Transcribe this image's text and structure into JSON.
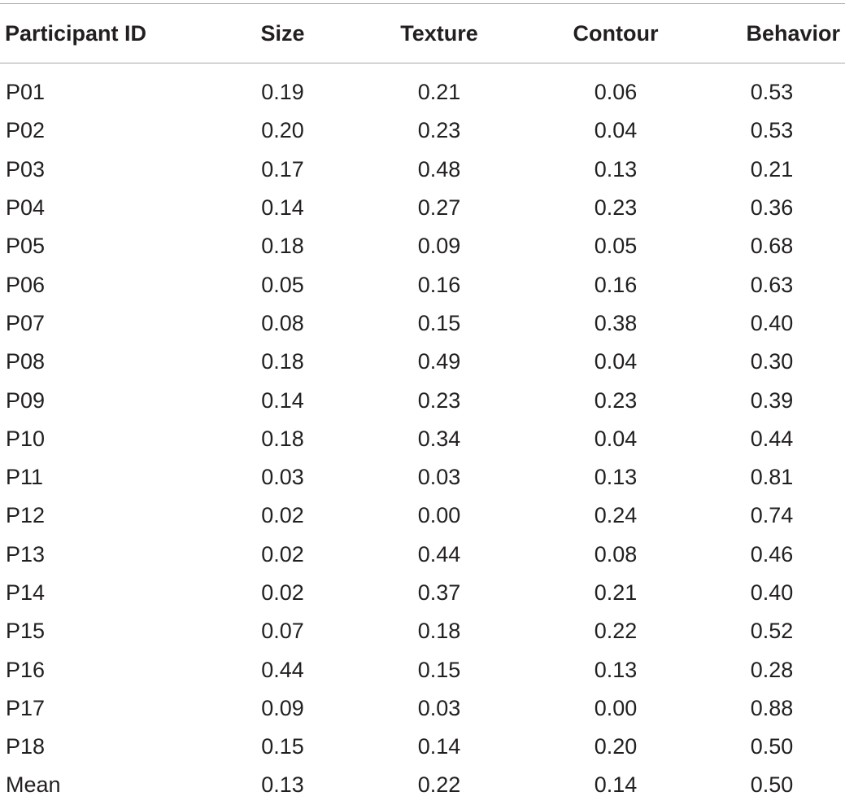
{
  "table": {
    "headers": [
      "Participant ID",
      "Size",
      "Texture",
      "Contour",
      "Behavior"
    ],
    "rows": [
      [
        "P01",
        "0.19",
        "0.21",
        "0.06",
        "0.53"
      ],
      [
        "P02",
        "0.20",
        "0.23",
        "0.04",
        "0.53"
      ],
      [
        "P03",
        "0.17",
        "0.48",
        "0.13",
        "0.21"
      ],
      [
        "P04",
        "0.14",
        "0.27",
        "0.23",
        "0.36"
      ],
      [
        "P05",
        "0.18",
        "0.09",
        "0.05",
        "0.68"
      ],
      [
        "P06",
        "0.05",
        "0.16",
        "0.16",
        "0.63"
      ],
      [
        "P07",
        "0.08",
        "0.15",
        "0.38",
        "0.40"
      ],
      [
        "P08",
        "0.18",
        "0.49",
        "0.04",
        "0.30"
      ],
      [
        "P09",
        "0.14",
        "0.23",
        "0.23",
        "0.39"
      ],
      [
        "P10",
        "0.18",
        "0.34",
        "0.04",
        "0.44"
      ],
      [
        "P11",
        "0.03",
        "0.03",
        "0.13",
        "0.81"
      ],
      [
        "P12",
        "0.02",
        "0.00",
        "0.24",
        "0.74"
      ],
      [
        "P13",
        "0.02",
        "0.44",
        "0.08",
        "0.46"
      ],
      [
        "P14",
        "0.02",
        "0.37",
        "0.21",
        "0.40"
      ],
      [
        "P15",
        "0.07",
        "0.18",
        "0.22",
        "0.52"
      ],
      [
        "P16",
        "0.44",
        "0.15",
        "0.13",
        "0.28"
      ],
      [
        "P17",
        "0.09",
        "0.03",
        "0.00",
        "0.88"
      ],
      [
        "P18",
        "0.15",
        "0.14",
        "0.20",
        "0.50"
      ],
      [
        "Mean",
        "0.13",
        "0.22",
        "0.14",
        "0.50"
      ]
    ]
  }
}
